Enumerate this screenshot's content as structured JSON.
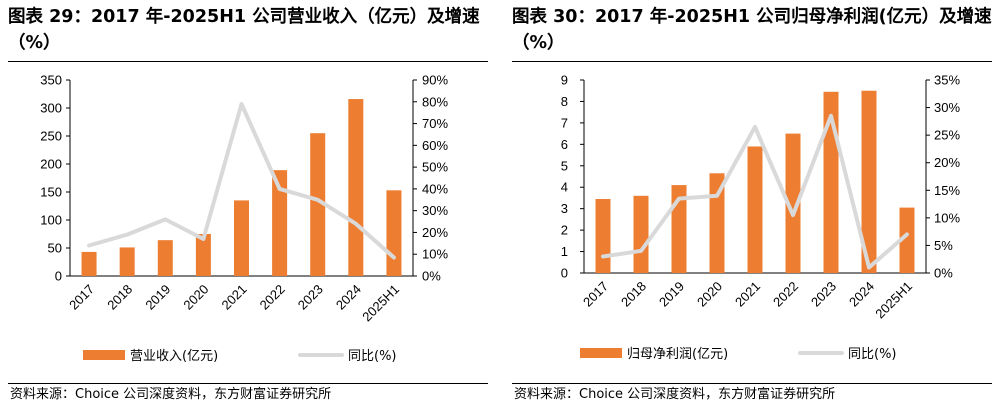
{
  "charts": [
    {
      "title": "图表 29：2017 年-2025H1 公司营业收入（亿元）及增速（%）",
      "source": "资料来源：Choice 公司深度资料，东方财富证券研究所",
      "chart_data": {
        "type": "bar",
        "categories": [
          "2017",
          "2018",
          "2019",
          "2020",
          "2021",
          "2022",
          "2023",
          "2024",
          "2025H1"
        ],
        "series": [
          {
            "name": "营业收入(亿元)",
            "type": "bar",
            "axis": "left",
            "color": "#ED7D31",
            "values": [
              43,
              51,
              64,
              75,
              135,
              189,
              255,
              316,
              153
            ]
          },
          {
            "name": "同比(%)",
            "type": "line",
            "axis": "right",
            "color": "#D9D9D9",
            "values": [
              14,
              19,
              26,
              17,
              79,
              40,
              35,
              24,
              8.5
            ]
          }
        ],
        "y_left": {
          "min": 0,
          "max": 350,
          "step": 50,
          "tick_labels": [
            "0",
            "50",
            "100",
            "150",
            "200",
            "250",
            "300",
            "350"
          ]
        },
        "y_right": {
          "min": 0,
          "max": 90,
          "step": 10,
          "tick_labels": [
            "0%",
            "10%",
            "20%",
            "30%",
            "40%",
            "50%",
            "60%",
            "70%",
            "80%",
            "90%"
          ]
        },
        "grid": false,
        "legend_position": "bottom"
      }
    },
    {
      "title": "图表 30：2017 年-2025H1 公司归母净利润(亿元）及增速（%）",
      "source": "资料来源：Choice 公司深度资料，东方财富证券研究所",
      "chart_data": {
        "type": "bar",
        "categories": [
          "2017",
          "2018",
          "2019",
          "2020",
          "2021",
          "2022",
          "2023",
          "2024",
          "2025H1"
        ],
        "series": [
          {
            "name": "归母净利润(亿元)",
            "type": "bar",
            "axis": "left",
            "color": "#ED7D31",
            "values": [
              3.45,
              3.6,
              4.1,
              4.65,
              5.9,
              6.5,
              8.45,
              8.5,
              3.05
            ]
          },
          {
            "name": "同比(%)",
            "type": "line",
            "axis": "right",
            "color": "#D9D9D9",
            "values": [
              3,
              4,
              13.5,
              14,
              26.5,
              10.5,
              28.5,
              1,
              7
            ]
          }
        ],
        "y_left": {
          "min": 0,
          "max": 9,
          "step": 1,
          "tick_labels": [
            "0",
            "1",
            "2",
            "3",
            "4",
            "5",
            "6",
            "7",
            "8",
            "9"
          ]
        },
        "y_right": {
          "min": 0,
          "max": 35,
          "step": 5,
          "tick_labels": [
            "0%",
            "5%",
            "10%",
            "15%",
            "20%",
            "25%",
            "30%",
            "35%"
          ]
        },
        "grid": false,
        "legend_position": "bottom"
      }
    }
  ]
}
